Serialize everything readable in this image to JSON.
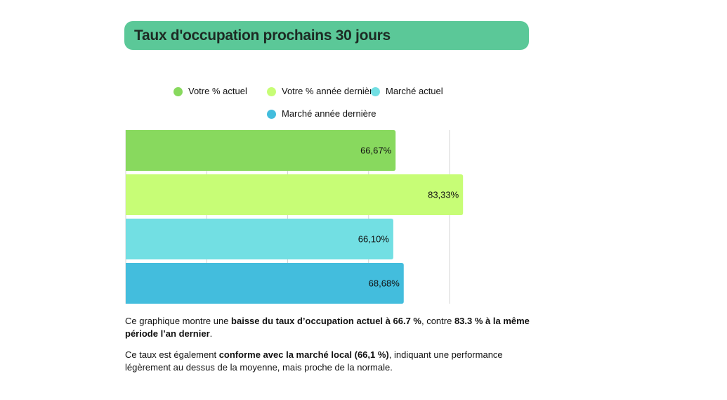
{
  "title": "Taux d'occupation prochains 30 jours",
  "chart_data": {
    "type": "bar",
    "orientation": "horizontal",
    "categories": [
      "Votre % actuel",
      "Votre % année dernière",
      "Marché actuel",
      "Marché année dernière"
    ],
    "values": [
      66.67,
      83.33,
      66.1,
      68.68
    ],
    "labels": [
      "66,67%",
      "83,33%",
      "66,10%",
      "68,68%"
    ],
    "colors": [
      "#88D95E",
      "#C7FD76",
      "#72DFE3",
      "#43BDDD"
    ],
    "xlim": [
      0,
      80
    ],
    "gridlines": [
      20,
      40,
      60,
      80
    ],
    "grid": true,
    "legend": "top-center"
  },
  "description": {
    "p1": {
      "t1": "Ce graphique montre une ",
      "b1": "baisse du taux d’occupation actuel à 66.7 %",
      "t2": ", contre ",
      "b2": "83.3 % à la même période l’an dernier",
      "t3": "."
    },
    "p2": {
      "t1": "Ce taux est également ",
      "b1": "conforme avec la marché local (66,1 %)",
      "t2": ", indiquant une performance légèrement au dessus de la moyenne, mais proche de la normale."
    }
  }
}
